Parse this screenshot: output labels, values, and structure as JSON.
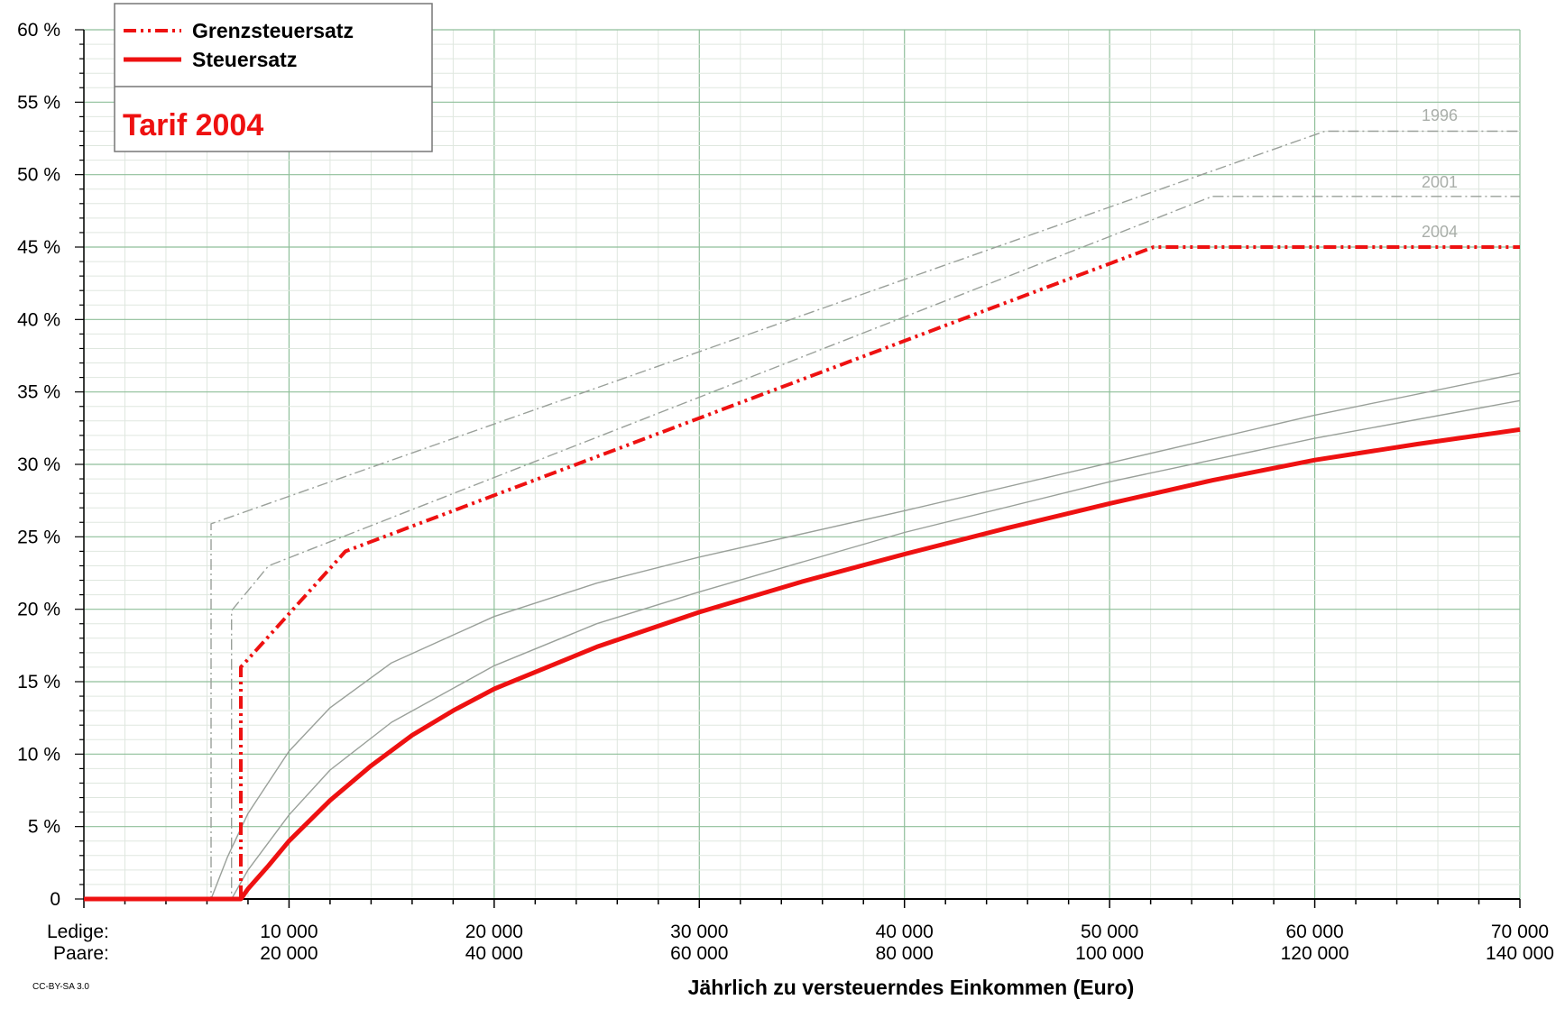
{
  "chart_data": {
    "type": "line",
    "title": "",
    "xlabel": "Jährlich zu versteuerndes Einkommen (Euro)",
    "ylabel": "",
    "xlim": [
      0,
      70000
    ],
    "ylim": [
      0,
      60
    ],
    "grid": true,
    "legend_position": "top-left",
    "x_tick_row_labels": [
      "Ledige:",
      "Paare:"
    ],
    "x_ticks": [
      {
        "value": 10000,
        "single": "10 000",
        "couple": "20 000"
      },
      {
        "value": 20000,
        "single": "20 000",
        "couple": "40 000"
      },
      {
        "value": 30000,
        "single": "30 000",
        "couple": "60 000"
      },
      {
        "value": 40000,
        "single": "40 000",
        "couple": "80 000"
      },
      {
        "value": 50000,
        "single": "50 000",
        "couple": "100 000"
      },
      {
        "value": 60000,
        "single": "60 000",
        "couple": "120 000"
      },
      {
        "value": 70000,
        "single": "70 000",
        "couple": "140 000"
      }
    ],
    "y_ticks": [
      {
        "value": 0,
        "label": "0"
      },
      {
        "value": 5,
        "label": "5 %"
      },
      {
        "value": 10,
        "label": "10 %"
      },
      {
        "value": 15,
        "label": "15 %"
      },
      {
        "value": 20,
        "label": "20 %"
      },
      {
        "value": 25,
        "label": "25 %"
      },
      {
        "value": 30,
        "label": "30 %"
      },
      {
        "value": 35,
        "label": "35 %"
      },
      {
        "value": 40,
        "label": "40 %"
      },
      {
        "value": 45,
        "label": "45 %"
      },
      {
        "value": 50,
        "label": "50 %"
      },
      {
        "value": 55,
        "label": "55 %"
      },
      {
        "value": 60,
        "label": "60 %"
      }
    ],
    "legend": {
      "entries": [
        "Grenzsteuersatz",
        "Steuersatz"
      ],
      "tarif_label": "Tarif 2004"
    },
    "annotations": {
      "year_1996": "1996",
      "year_2001": "2001",
      "year_2004": "2004",
      "license": "CC-BY-SA 3.0"
    },
    "colors": {
      "highlight": "#ee1111",
      "reference": "#9aa09a",
      "grid_major": "#8fbf9a",
      "grid_minor": "#dfe7df",
      "axis": "#000000"
    },
    "series": [
      {
        "kind": "marginal",
        "year": "1996",
        "x": [
          0,
          6200,
          6200,
          60500,
          70000
        ],
        "y": [
          0,
          0,
          25.9,
          53,
          53
        ]
      },
      {
        "kind": "marginal",
        "year": "2001",
        "x": [
          0,
          7200,
          7200,
          9000,
          55000,
          70000
        ],
        "y": [
          0,
          0,
          19.9,
          23,
          48.5,
          48.5
        ]
      },
      {
        "kind": "marginal",
        "year": "2004",
        "x": [
          0,
          7650,
          7650,
          12750,
          52150,
          70000
        ],
        "y": [
          0,
          0,
          16,
          24,
          45,
          45
        ]
      },
      {
        "kind": "average",
        "year": "1996",
        "x": [
          0,
          6200,
          7000,
          8000,
          10000,
          12000,
          15000,
          20000,
          25000,
          30000,
          40000,
          50000,
          60000,
          70000
        ],
        "y": [
          0,
          0,
          2.9,
          5.9,
          10.2,
          13.2,
          16.3,
          19.5,
          21.8,
          23.6,
          26.8,
          30.1,
          33.4,
          36.3
        ]
      },
      {
        "kind": "average",
        "year": "2001",
        "x": [
          0,
          7200,
          8000,
          9000,
          10000,
          12000,
          15000,
          20000,
          25000,
          30000,
          40000,
          50000,
          60000,
          70000
        ],
        "y": [
          0,
          0,
          2.0,
          3.9,
          5.8,
          8.9,
          12.2,
          16.1,
          19.0,
          21.2,
          25.3,
          28.8,
          31.8,
          34.4
        ]
      },
      {
        "kind": "average",
        "year": "2004",
        "x": [
          0,
          7650,
          8000,
          9000,
          10000,
          12000,
          14000,
          16000,
          18000,
          20000,
          25000,
          30000,
          35000,
          40000,
          45000,
          50000,
          55000,
          60000,
          65000,
          70000
        ],
        "y": [
          0,
          0,
          0.7,
          2.3,
          4.0,
          6.8,
          9.2,
          11.3,
          13.0,
          14.5,
          17.4,
          19.8,
          21.9,
          23.8,
          25.6,
          27.3,
          28.9,
          30.3,
          31.4,
          32.4
        ]
      }
    ]
  }
}
